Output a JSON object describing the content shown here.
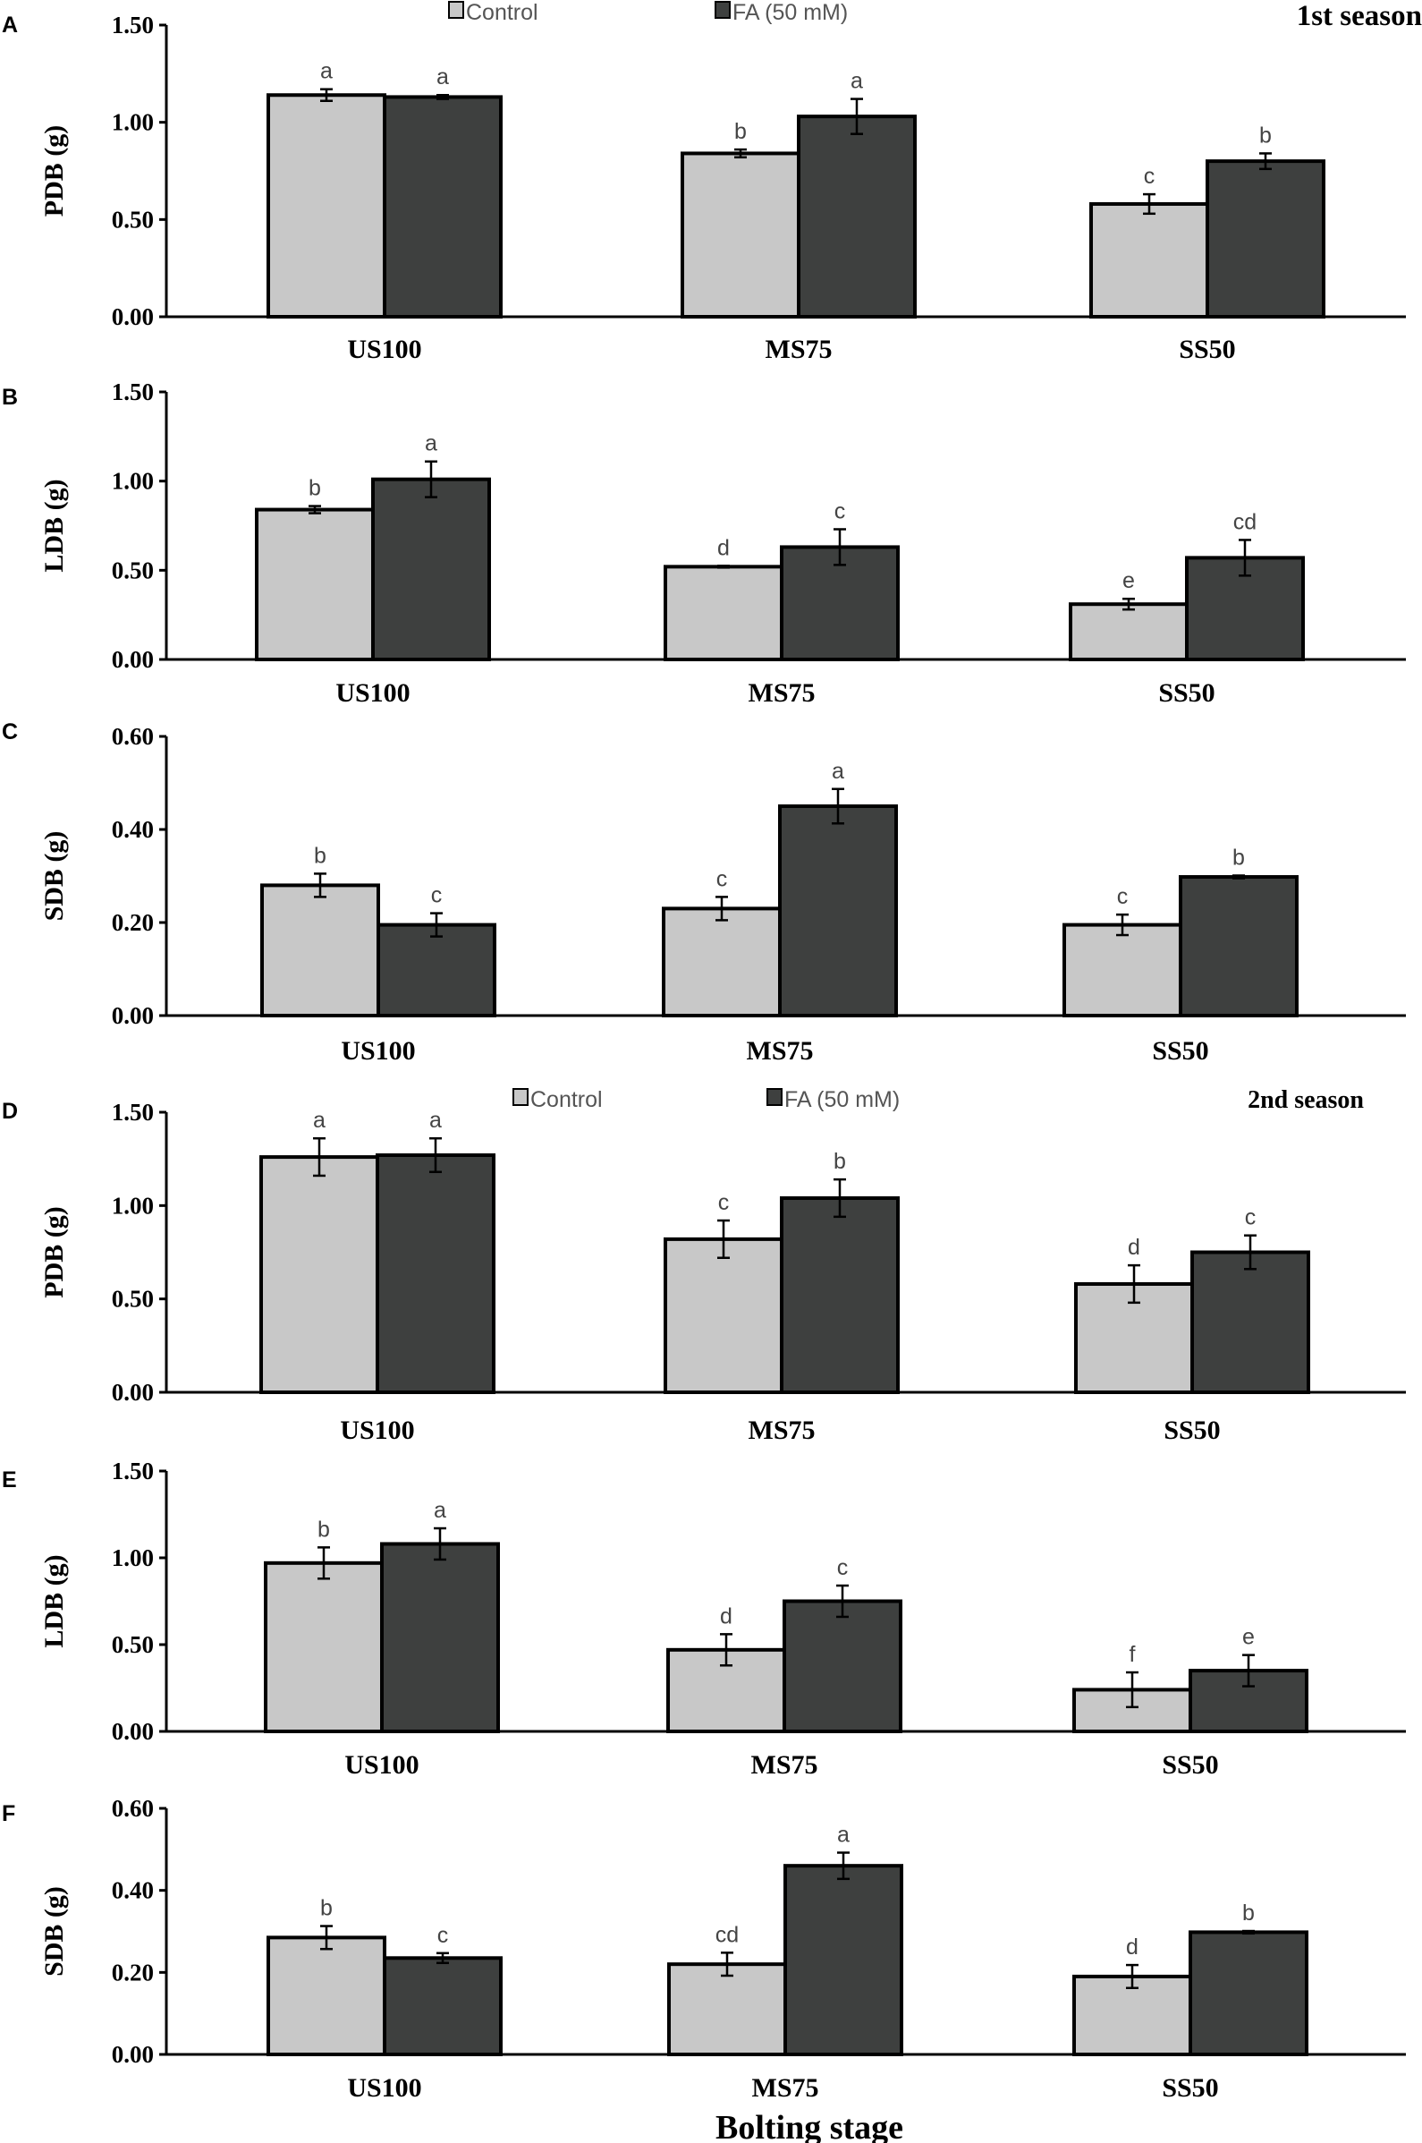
{
  "colors": {
    "control": "#c8c8c8",
    "fa": "#3e403f",
    "outline": "#000000"
  },
  "legend": [
    {
      "label": "Control",
      "color": "#c8c8c8"
    },
    {
      "label": "FA (50 mM)",
      "color": "#3e403f"
    }
  ],
  "xlabel": "Bolting stage",
  "chart_data": [
    {
      "panel": "A",
      "type": "bar",
      "season": "1st season",
      "ylabel": "PDB (g)",
      "ylim": [
        0,
        1.5
      ],
      "ticks": [
        "0.00",
        "0.50",
        "1.00",
        "1.50"
      ],
      "categories": [
        "US100",
        "MS75",
        "SS50"
      ],
      "series": [
        {
          "name": "Control",
          "values": [
            1.14,
            0.84,
            0.58
          ],
          "errors": [
            0.03,
            0.02,
            0.05
          ],
          "letters": [
            "a",
            "b",
            "c"
          ]
        },
        {
          "name": "FA (50 mM)",
          "values": [
            1.13,
            1.03,
            0.8
          ],
          "errors": [
            0.01,
            0.09,
            0.04
          ],
          "letters": [
            "a",
            "a",
            "b"
          ]
        }
      ]
    },
    {
      "panel": "B",
      "type": "bar",
      "ylabel": "LDB (g)",
      "ylim": [
        0,
        1.5
      ],
      "ticks": [
        "0.00",
        "0.50",
        "1.00",
        "1.50"
      ],
      "categories": [
        "US100",
        "MS75",
        "SS50"
      ],
      "series": [
        {
          "name": "Control",
          "values": [
            0.84,
            0.52,
            0.31
          ],
          "errors": [
            0.02,
            0.005,
            0.03
          ],
          "letters": [
            "b",
            "d",
            "e"
          ]
        },
        {
          "name": "FA (50 mM)",
          "values": [
            1.01,
            0.63,
            0.57
          ],
          "errors": [
            0.1,
            0.1,
            0.1
          ],
          "letters": [
            "a",
            "c",
            "cd"
          ]
        }
      ]
    },
    {
      "panel": "C",
      "type": "bar",
      "ylabel": "SDB (g)",
      "ylim": [
        0,
        0.6
      ],
      "ticks": [
        "0.00",
        "0.20",
        "0.40",
        "0.60"
      ],
      "categories": [
        "US100",
        "MS75",
        "SS50"
      ],
      "series": [
        {
          "name": "Control",
          "values": [
            0.28,
            0.23,
            0.195
          ],
          "errors": [
            0.025,
            0.025,
            0.022
          ],
          "letters": [
            "b",
            "c",
            "c"
          ]
        },
        {
          "name": "FA (50 mM)",
          "values": [
            0.195,
            0.45,
            0.298
          ],
          "errors": [
            0.025,
            0.037,
            0.003
          ],
          "letters": [
            "c",
            "a",
            "b"
          ]
        }
      ]
    },
    {
      "panel": "D",
      "type": "bar",
      "season": "2nd season",
      "ylabel": "PDB (g)",
      "ylim": [
        0,
        1.5
      ],
      "ticks": [
        "0.00",
        "0.50",
        "1.00",
        "1.50"
      ],
      "categories": [
        "US100",
        "MS75",
        "SS50"
      ],
      "series": [
        {
          "name": "Control",
          "values": [
            1.26,
            0.82,
            0.58
          ],
          "errors": [
            0.1,
            0.1,
            0.1
          ],
          "letters": [
            "a",
            "c",
            "d"
          ]
        },
        {
          "name": "FA (50 mM)",
          "values": [
            1.27,
            1.04,
            0.75
          ],
          "errors": [
            0.09,
            0.1,
            0.09
          ],
          "letters": [
            "a",
            "b",
            "c"
          ]
        }
      ]
    },
    {
      "panel": "E",
      "type": "bar",
      "ylabel": "LDB (g)",
      "ylim": [
        0,
        1.5
      ],
      "ticks": [
        "0.00",
        "0.50",
        "1.00",
        "1.50"
      ],
      "categories": [
        "US100",
        "MS75",
        "SS50"
      ],
      "series": [
        {
          "name": "Control",
          "values": [
            0.97,
            0.47,
            0.24
          ],
          "errors": [
            0.09,
            0.09,
            0.1
          ],
          "letters": [
            "b",
            "d",
            "f"
          ]
        },
        {
          "name": "FA (50 mM)",
          "values": [
            1.08,
            0.75,
            0.35
          ],
          "errors": [
            0.09,
            0.09,
            0.09
          ],
          "letters": [
            "a",
            "c",
            "e"
          ]
        }
      ]
    },
    {
      "panel": "F",
      "type": "bar",
      "ylabel": "SDB (g)",
      "ylim": [
        0,
        0.6
      ],
      "ticks": [
        "0.00",
        "0.20",
        "0.40",
        "0.60"
      ],
      "categories": [
        "US100",
        "MS75",
        "SS50"
      ],
      "series": [
        {
          "name": "Control",
          "values": [
            0.285,
            0.22,
            0.19
          ],
          "errors": [
            0.028,
            0.028,
            0.028
          ],
          "letters": [
            "b",
            "cd",
            "d"
          ]
        },
        {
          "name": "FA (50 mM)",
          "values": [
            0.235,
            0.46,
            0.298
          ],
          "errors": [
            0.012,
            0.032,
            0.003
          ],
          "letters": [
            "c",
            "a",
            "b"
          ]
        }
      ]
    }
  ]
}
